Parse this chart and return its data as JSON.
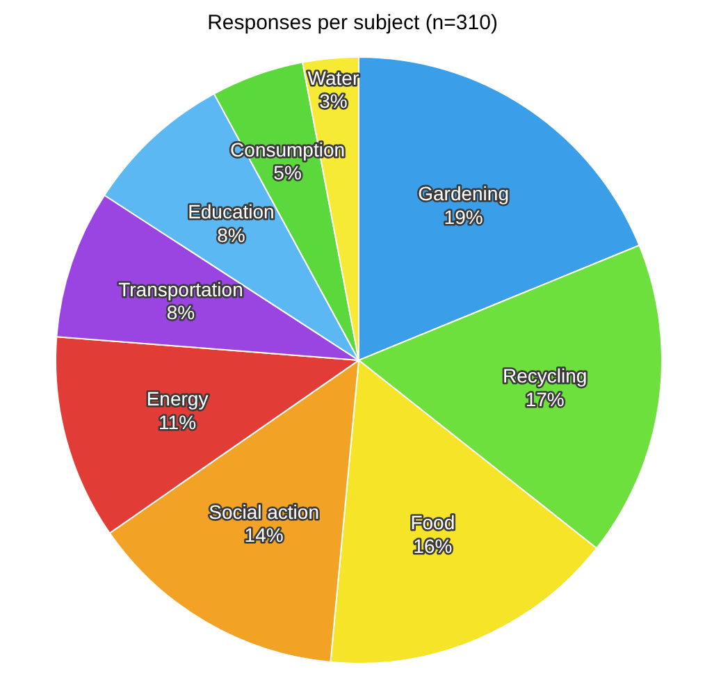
{
  "chart_data": {
    "type": "pie",
    "title": "Responses per subject (n=310)",
    "categories": [
      "Gardening",
      "Recycling",
      "Food",
      "Social action",
      "Energy",
      "Transportation",
      "Education",
      "Consumption",
      "Water"
    ],
    "values": [
      19,
      17,
      16,
      14,
      11,
      8,
      8,
      5,
      3
    ],
    "value_labels": [
      "19%",
      "17%",
      "16%",
      "14%",
      "11%",
      "8%",
      "8%",
      "5%",
      "3%"
    ],
    "colors": [
      "#3a9ee8",
      "#6ee03e",
      "#f6e428",
      "#f2a224",
      "#e23c36",
      "#9a44e2",
      "#5cb8f2",
      "#5ad83c",
      "#f6ea34"
    ],
    "legend": false
  }
}
